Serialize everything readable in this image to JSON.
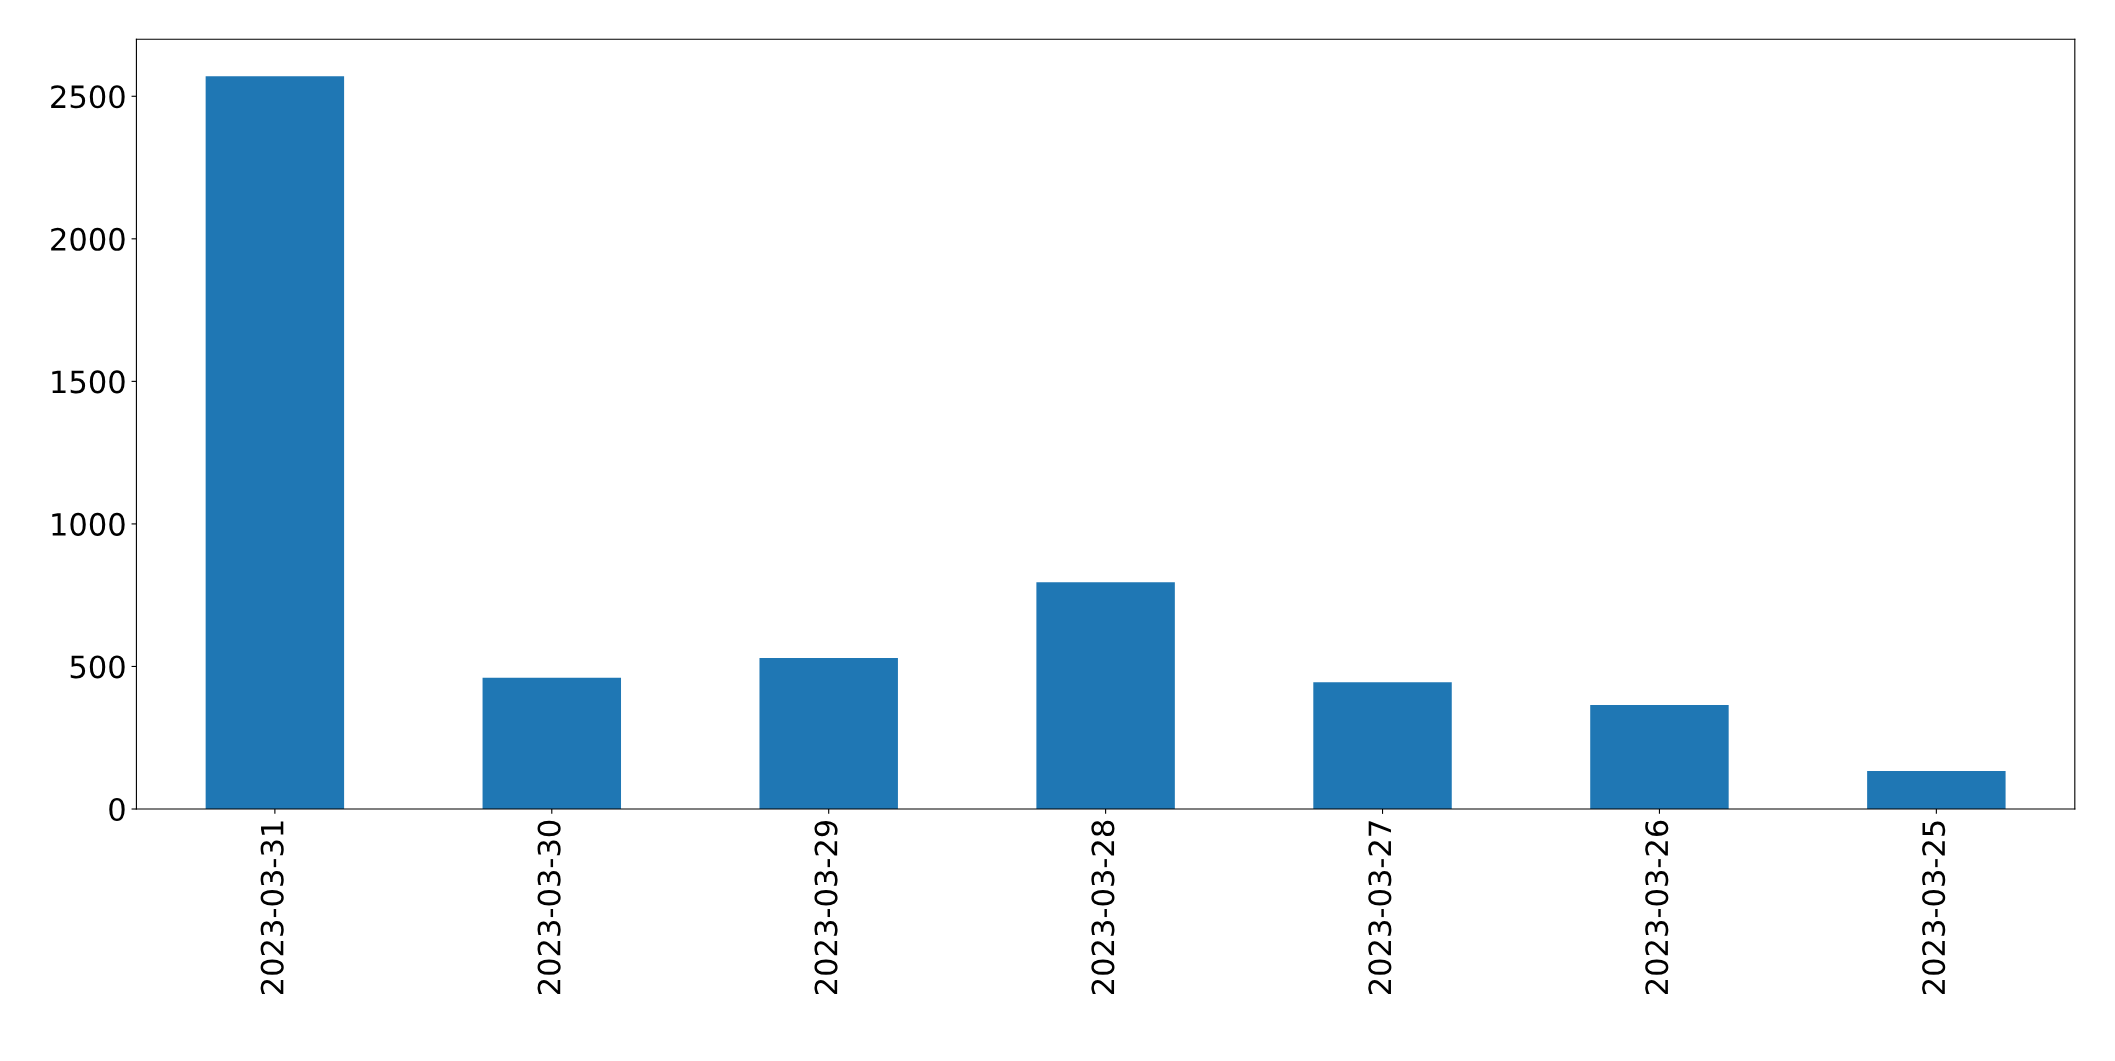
{
  "chart_data": {
    "type": "bar",
    "categories": [
      "2023-03-31",
      "2023-03-30",
      "2023-03-29",
      "2023-03-28",
      "2023-03-27",
      "2023-03-26",
      "2023-03-25"
    ],
    "values": [
      2570,
      460,
      530,
      795,
      445,
      365,
      133
    ],
    "color": "#1f77b4",
    "ylim": [
      0,
      2700
    ],
    "yticks": [
      0,
      500,
      1000,
      1500,
      2000,
      2500
    ],
    "grid": false,
    "legend": false
  }
}
